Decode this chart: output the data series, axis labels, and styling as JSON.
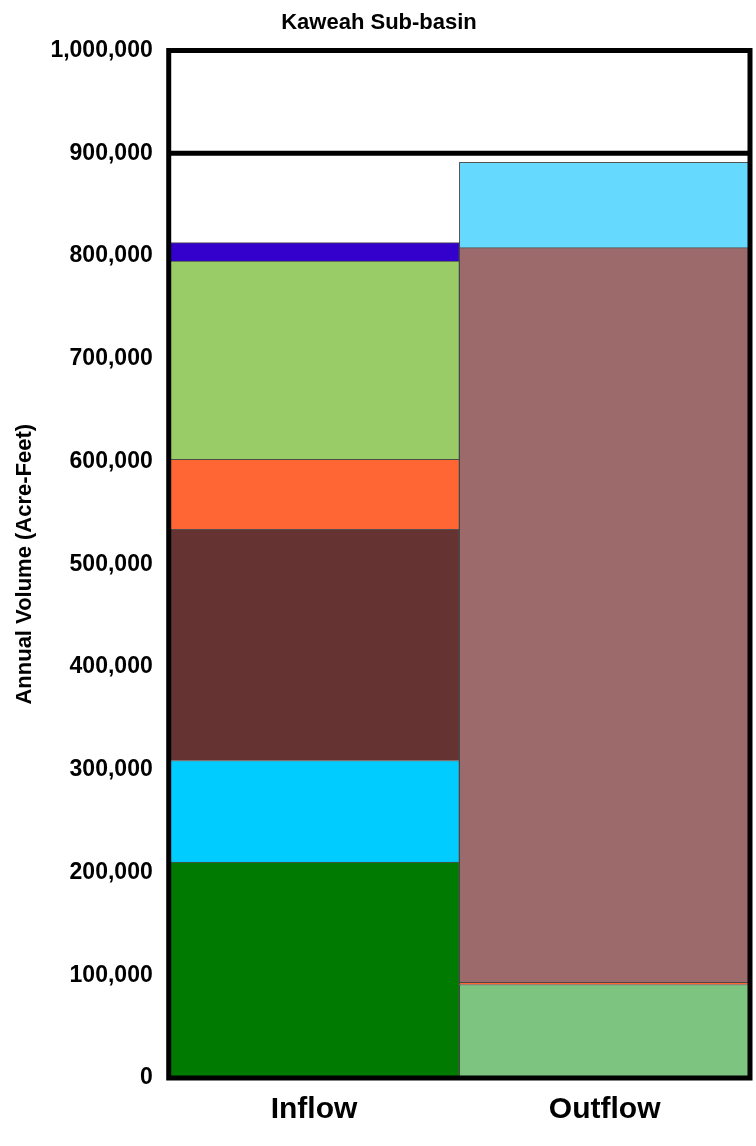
{
  "chart_data": {
    "type": "bar",
    "title": "Kaweah Sub-basin",
    "ylabel": "Annual Volume (Acre-Feet)",
    "categories": [
      "Inflow",
      "Outflow"
    ],
    "stacked": true,
    "grid": false,
    "legend": false,
    "ylim": [
      0,
      1000000
    ],
    "yticks": [
      {
        "value": 0,
        "label": "0"
      },
      {
        "value": 100000,
        "label": "100,000"
      },
      {
        "value": 200000,
        "label": "200,000"
      },
      {
        "value": 300000,
        "label": "300,000"
      },
      {
        "value": 400000,
        "label": "400,000"
      },
      {
        "value": 500000,
        "label": "500,000"
      },
      {
        "value": 600000,
        "label": "600,000"
      },
      {
        "value": 700000,
        "label": "700,000"
      },
      {
        "value": 800000,
        "label": "800,000"
      },
      {
        "value": 900000,
        "label": "900,000"
      },
      {
        "value": 1000000,
        "label": "1,000,000"
      }
    ],
    "ref_lines": [
      {
        "axis": "y",
        "value": 900000,
        "color": "#000000"
      }
    ],
    "series": [
      {
        "color": "#007a00",
        "values": [
          210000,
          null
        ]
      },
      {
        "color": "#00ccff",
        "values": [
          99000,
          null
        ]
      },
      {
        "color": "#663333",
        "values": [
          225000,
          null
        ]
      },
      {
        "color": "#ff6633",
        "values": [
          68000,
          null
        ]
      },
      {
        "color": "#99cc66",
        "values": [
          193000,
          null
        ]
      },
      {
        "color": "#3300cc",
        "values": [
          18000,
          null
        ]
      },
      {
        "color": "#7cc47f",
        "values": [
          null,
          91000
        ]
      },
      {
        "color": "#ff6633",
        "values": [
          null,
          2000
        ]
      },
      {
        "color": "#9c6a6a",
        "values": [
          null,
          715000
        ]
      },
      {
        "color": "#66d9ff",
        "values": [
          null,
          83000
        ]
      }
    ]
  }
}
